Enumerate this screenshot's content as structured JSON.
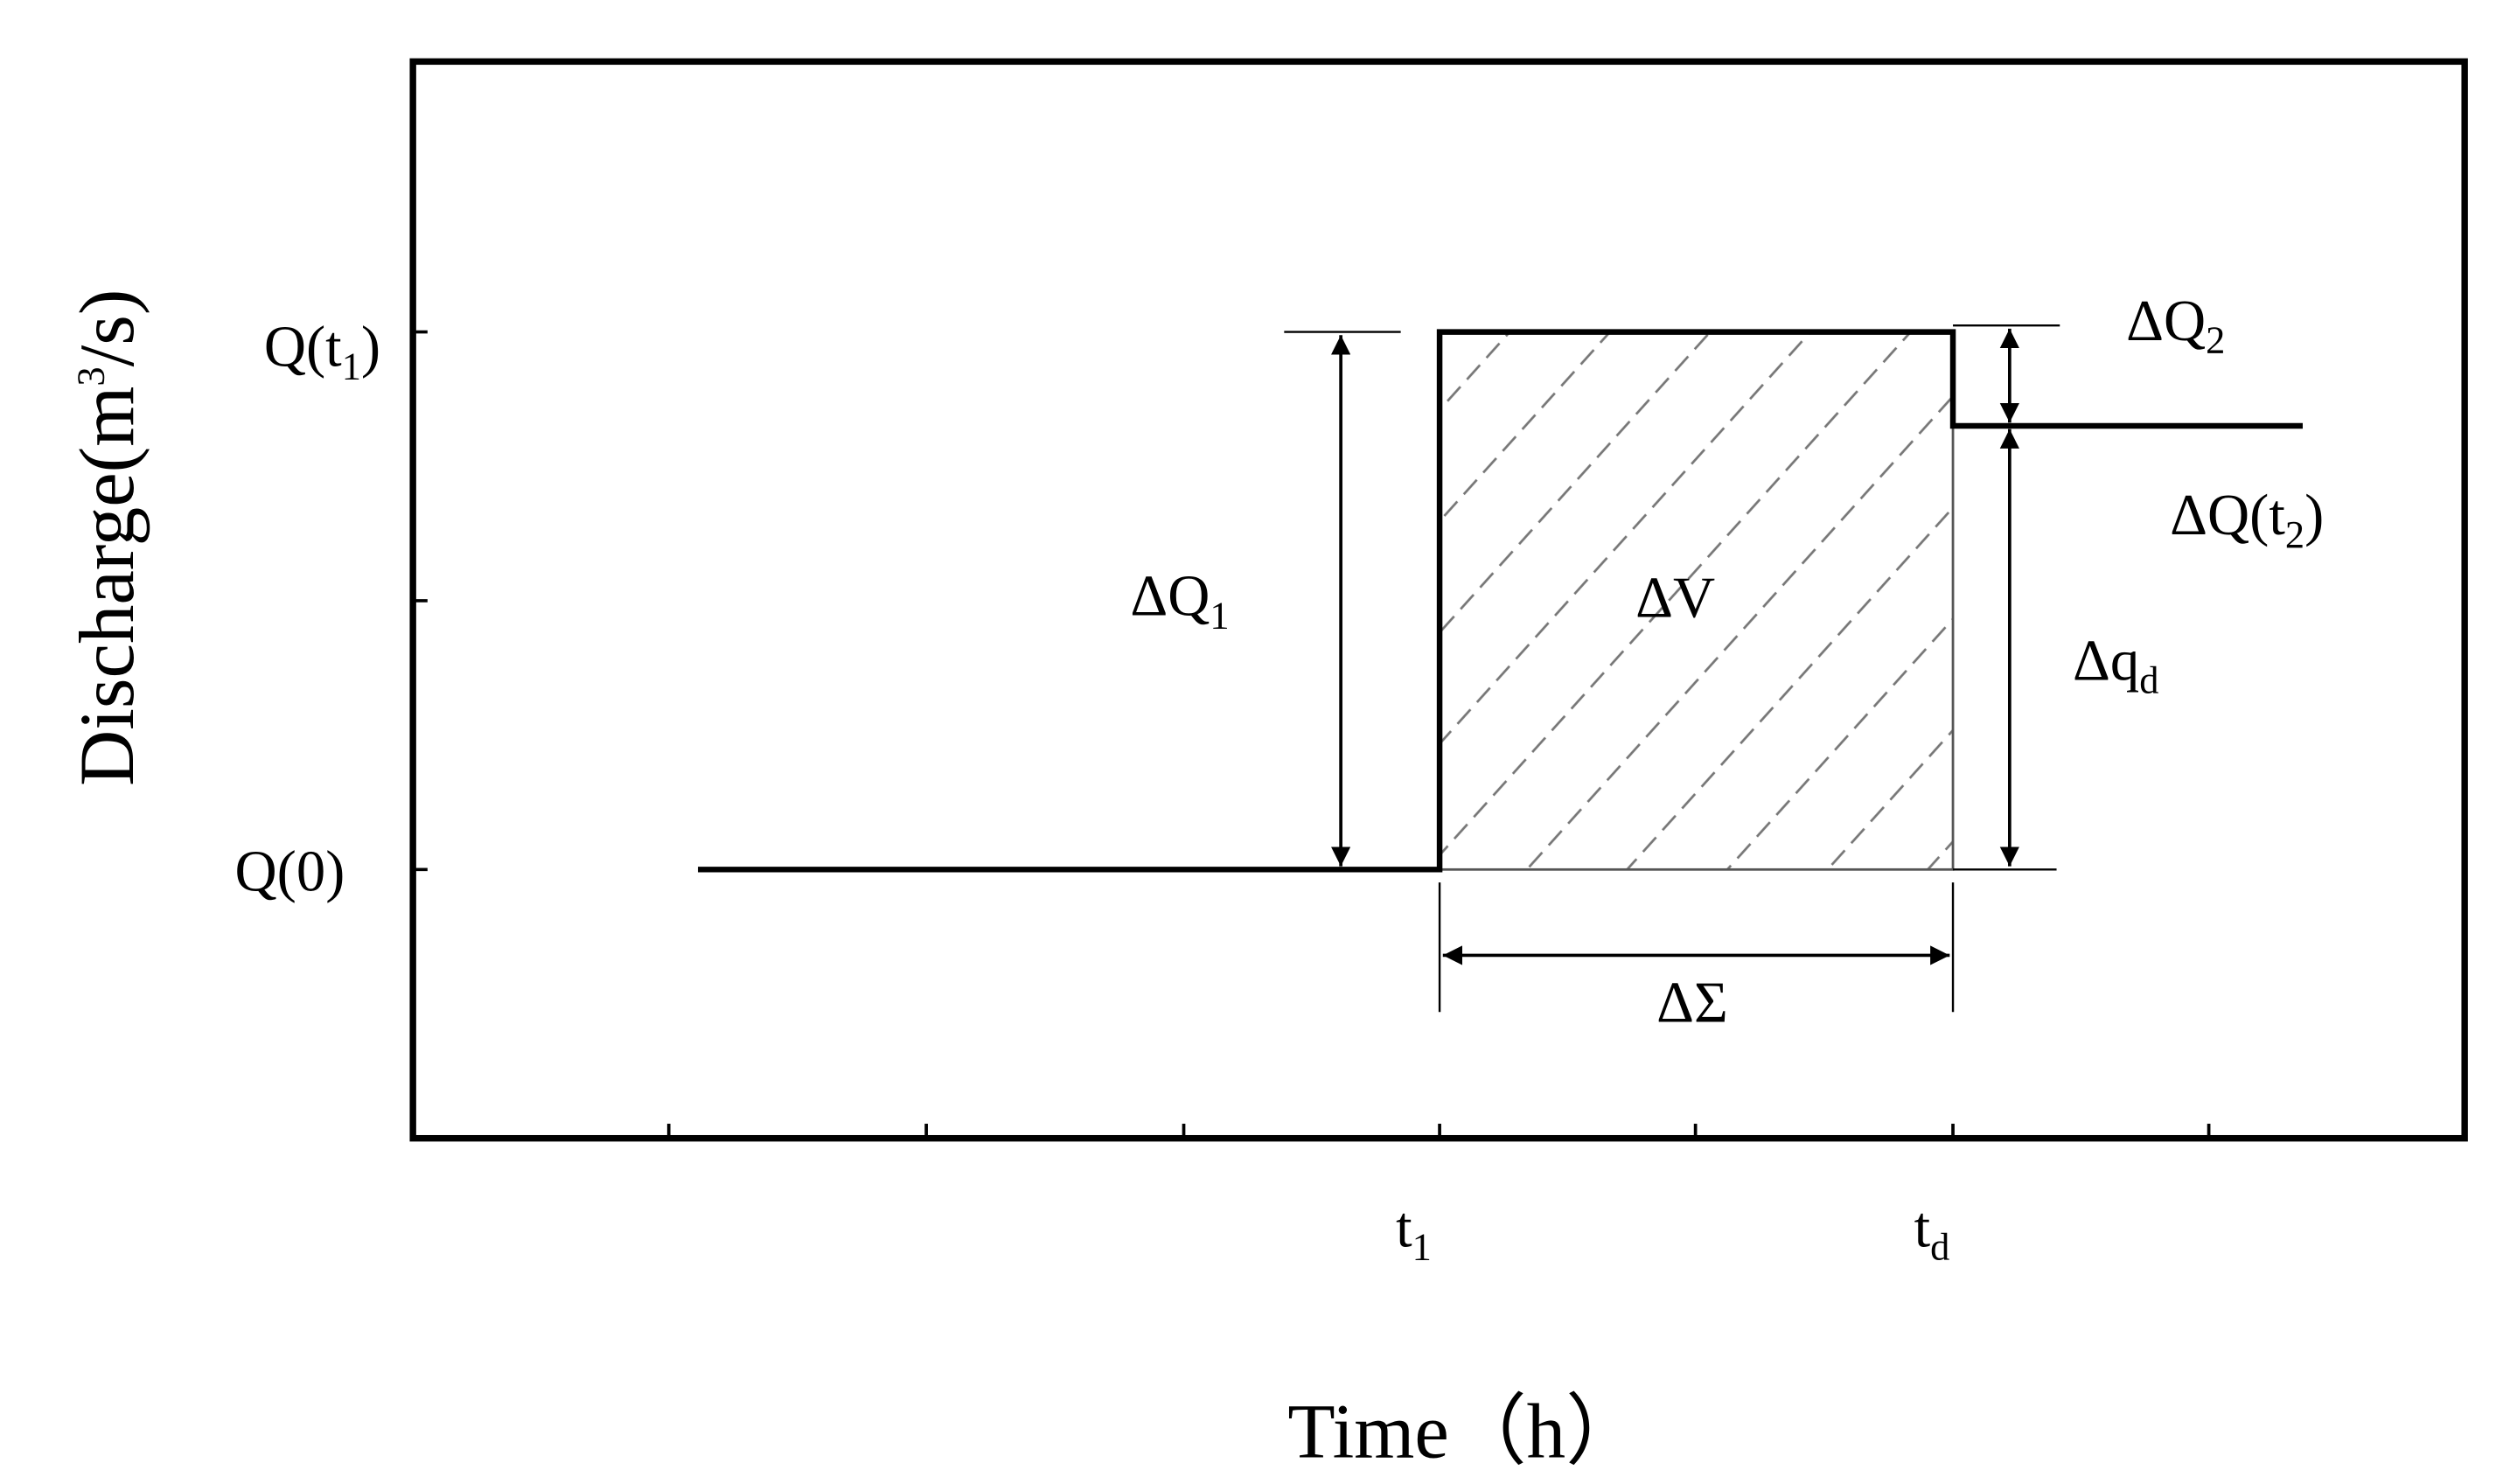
{
  "y_axis": {
    "label": {
      "base": "Discharge(m",
      "sup": "3",
      "tail": "/s)"
    },
    "ticks": [
      {
        "base": "Q(t",
        "sub": "1",
        "tail": ")"
      },
      {
        "base": "Q(0)"
      }
    ]
  },
  "x_axis": {
    "label": "Time（h）",
    "ticks": [
      {
        "base": "t",
        "sub": "1"
      },
      {
        "base": "t",
        "sub": "d"
      }
    ]
  },
  "annotations": {
    "dq1": {
      "base": "ΔQ",
      "sub": "1"
    },
    "dv": {
      "base": "ΔV"
    },
    "dq2": {
      "base": "ΔQ",
      "sub": "2"
    },
    "dqt2": {
      "base": "ΔQ(t",
      "sub": "2",
      "tail": ")"
    },
    "dqd": {
      "base": "Δq",
      "sub": "d"
    },
    "dsigma": {
      "base": "ΔΣ"
    }
  }
}
